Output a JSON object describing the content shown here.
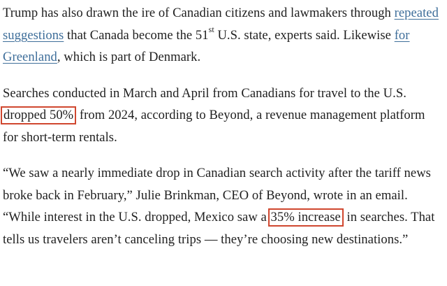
{
  "article": {
    "p1": {
      "text_a": "Trump has also drawn the ire of Canadian citizens and lawmakers through ",
      "link1": "repeated suggestions",
      "text_b": " that Canada become the 51",
      "sup": "st",
      "text_c": " U.S. state, experts said. Likewise ",
      "link2": "for Greenland",
      "text_d": ", which is part of Denmark."
    },
    "p2": {
      "text_a": "Searches conducted in March and April from Canadians for travel to the U.S. ",
      "highlight": "dropped 50%",
      "text_b": " from 2024, according to Beyond, a revenue management platform for short-term rentals."
    },
    "p3": {
      "text_a": "“We saw a nearly immediate drop in Canadian search activity after the tariff news broke back in February,” Julie Brinkman, CEO of Beyond, wrote in an email. “While interest in the U.S. dropped, Mexico saw a ",
      "highlight": "35% increase",
      "text_b": " in searches. That tells us travelers aren’t canceling trips — they’re choosing new destinations.”"
    }
  },
  "colors": {
    "text": "#1f1f1f",
    "link": "#3e6e9a",
    "highlight_border": "#d0472f",
    "background": "#ffffff"
  }
}
